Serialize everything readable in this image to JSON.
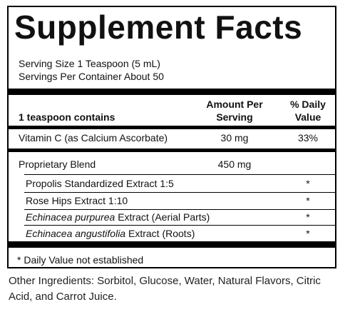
{
  "panel": {
    "title": "Supplement Facts",
    "serving_size": "Serving Size 1 Teaspoon (5 mL)",
    "servings_per_container": "Servings Per Container About 50",
    "header": {
      "col1": "1 teaspoon contains",
      "col2_line1": "Amount Per",
      "col2_line2": "Serving",
      "col3_line1": "% Daily",
      "col3_line2": "Value"
    },
    "rows": [
      {
        "name": "Vitamin C (as Calcium Ascorbate)",
        "amount": "30 mg",
        "dv": "33%"
      },
      {
        "name": "Proprietary Blend",
        "amount": "450 mg",
        "dv": ""
      }
    ],
    "blend_items": [
      {
        "name": "Propolis Standardized Extract 1:5",
        "dv": "*"
      },
      {
        "name": "Rose Hips Extract 1:10",
        "dv": "*"
      },
      {
        "name_italic": "Echinacea purpurea",
        "name_rest": " Extract (Aerial Parts)",
        "dv": "*"
      },
      {
        "name_italic": "Echinacea angustifolia",
        "name_rest": " Extract (Roots)",
        "dv": "*"
      }
    ],
    "footnote": "* Daily Value not established"
  },
  "other_ingredients": "Other Ingredients: Sorbitol, Glucose, Water, Natural Flavors, Citric Acid, and Carrot Juice."
}
